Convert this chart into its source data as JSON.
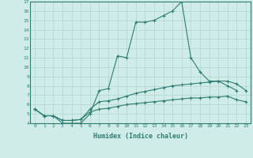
{
  "xlabel": "Humidex (Indice chaleur)",
  "x_values": [
    0,
    1,
    2,
    3,
    4,
    5,
    6,
    7,
    8,
    9,
    10,
    11,
    12,
    13,
    14,
    15,
    16,
    17,
    18,
    19,
    20,
    21,
    22,
    23
  ],
  "line1_y": [
    5.5,
    4.8,
    4.8,
    4.0,
    4.0,
    4.0,
    5.0,
    7.5,
    7.7,
    11.2,
    11.0,
    14.8,
    14.8,
    15.0,
    15.5,
    16.0,
    17.0,
    11.0,
    9.5,
    8.5,
    8.5,
    8.0,
    7.5,
    null
  ],
  "line2_y": [
    5.5,
    4.8,
    4.8,
    4.3,
    4.3,
    4.4,
    5.5,
    6.3,
    6.4,
    6.6,
    6.9,
    7.2,
    7.4,
    7.6,
    7.8,
    8.0,
    8.1,
    8.2,
    8.3,
    8.4,
    8.5,
    8.5,
    8.2,
    7.5
  ],
  "line3_y": [
    5.5,
    4.8,
    4.8,
    4.3,
    4.3,
    4.4,
    5.2,
    5.5,
    5.6,
    5.8,
    6.0,
    6.1,
    6.2,
    6.3,
    6.4,
    6.5,
    6.6,
    6.7,
    6.7,
    6.8,
    6.8,
    6.9,
    6.5,
    6.3
  ],
  "line_color": "#2e7d71",
  "bg_color": "#d0ece8",
  "grid_color": "#b0d5d0",
  "ylim": [
    4,
    17
  ],
  "xlim": [
    -0.5,
    23.5
  ],
  "yticks": [
    4,
    5,
    6,
    7,
    8,
    9,
    10,
    11,
    12,
    13,
    14,
    15,
    16,
    17
  ],
  "xticks": [
    0,
    1,
    2,
    3,
    4,
    5,
    6,
    7,
    8,
    9,
    10,
    11,
    12,
    13,
    14,
    15,
    16,
    17,
    18,
    19,
    20,
    21,
    22,
    23
  ]
}
